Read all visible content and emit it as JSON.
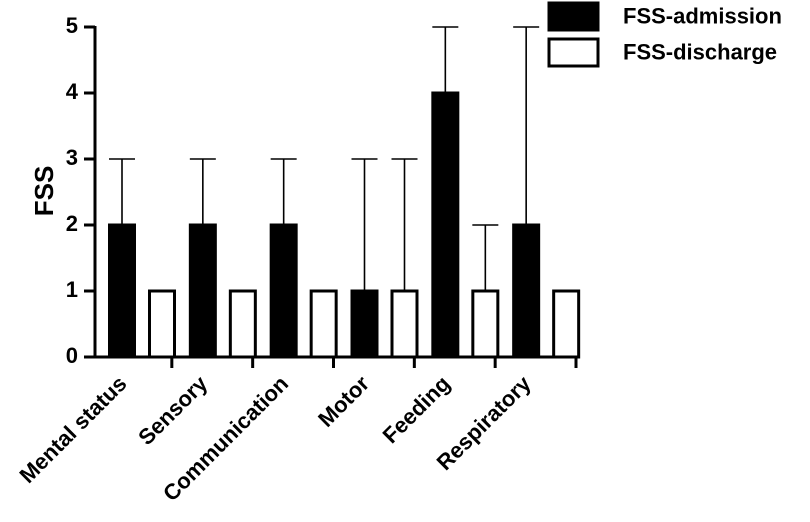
{
  "chart_data": {
    "type": "bar",
    "title": "",
    "xlabel": "",
    "ylabel": "FSS",
    "ylim": [
      0,
      5
    ],
    "yticks": [
      0,
      1,
      2,
      3,
      4,
      5
    ],
    "categories": [
      "Mental status",
      "Sensory",
      "Communication",
      "Motor",
      "Feeding",
      "Respiratory"
    ],
    "series": [
      {
        "name": "FSS-admission",
        "fill": "#000000",
        "values": [
          2,
          2,
          2,
          1,
          4,
          2
        ],
        "error_upper": [
          3,
          3,
          3,
          3,
          5,
          5
        ]
      },
      {
        "name": "FSS-discharge",
        "fill": "#ffffff",
        "values": [
          1,
          1,
          1,
          1,
          1,
          1
        ],
        "error_upper": [
          null,
          null,
          null,
          3,
          2,
          null
        ]
      }
    ],
    "legend": "top-right",
    "grid": false
  }
}
